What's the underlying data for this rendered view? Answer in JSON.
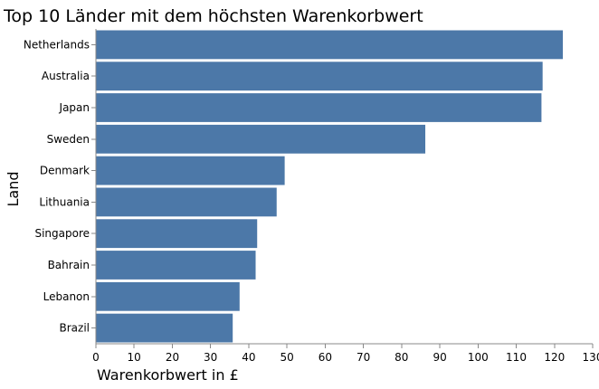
{
  "chart_data": {
    "type": "bar",
    "orientation": "horizontal",
    "title": "Top 10 Länder mit dem höchsten Warenkorbwert",
    "xlabel": "Warenkorbwert in £",
    "ylabel": "Land",
    "categories": [
      "Netherlands",
      "Australia",
      "Japan",
      "Sweden",
      "Denmark",
      "Lithuania",
      "Singapore",
      "Bahrain",
      "Lebanon",
      "Brazil"
    ],
    "values": [
      122.2,
      116.9,
      116.6,
      86.2,
      49.4,
      47.3,
      42.2,
      41.8,
      37.6,
      35.8
    ],
    "xlim": [
      0,
      130
    ],
    "xticks": [
      "0",
      "10",
      "20",
      "30",
      "40",
      "50",
      "60",
      "70",
      "80",
      "90",
      "100",
      "110",
      "120",
      "130"
    ],
    "bar_color": "#4c78a8",
    "grid": false,
    "legend": "none"
  }
}
